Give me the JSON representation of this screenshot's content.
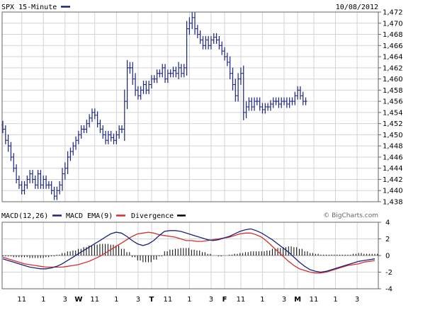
{
  "header": {
    "symbol_label": "SPX 15-Minute",
    "date_label": "10/08/2012"
  },
  "macd_header": {
    "macd_label": "MACD(12,26)",
    "ema_label": "MACD EMA(9)",
    "divergence_label": "Divergence"
  },
  "watermark": "© BigCharts.com",
  "colors": {
    "price": "#1a237e",
    "macd": "#1a237e",
    "ema": "#d32f2f",
    "divergence": "#000000",
    "grid": "#d3d3d3"
  },
  "chart_data": [
    {
      "type": "ohlc",
      "title": "SPX 15-Minute",
      "ylim": [
        1438,
        1472
      ],
      "yticks": [
        "1,438",
        "1,440",
        "1,442",
        "1,444",
        "1,446",
        "1,448",
        "1,450",
        "1,452",
        "1,454",
        "1,456",
        "1,458",
        "1,460",
        "1,462",
        "1,464",
        "1,466",
        "1,468",
        "1,470",
        "1,472"
      ],
      "xlim": [
        0,
        137
      ],
      "x_ticks": [
        {
          "i": 7,
          "label": "11",
          "bold": false
        },
        {
          "i": 15,
          "label": "1",
          "bold": false
        },
        {
          "i": 23,
          "label": "3",
          "bold": false
        },
        {
          "i": 28,
          "label": "W",
          "bold": true
        },
        {
          "i": 34,
          "label": "11",
          "bold": false
        },
        {
          "i": 42,
          "label": "1",
          "bold": false
        },
        {
          "i": 50,
          "label": "3",
          "bold": false
        },
        {
          "i": 55,
          "label": "T",
          "bold": true
        },
        {
          "i": 61,
          "label": "11",
          "bold": false
        },
        {
          "i": 69,
          "label": "1",
          "bold": false
        },
        {
          "i": 77,
          "label": "3",
          "bold": false
        },
        {
          "i": 82,
          "label": "F",
          "bold": true
        },
        {
          "i": 88,
          "label": "11",
          "bold": false
        },
        {
          "i": 96,
          "label": "1",
          "bold": false
        },
        {
          "i": 104,
          "label": "3",
          "bold": false
        },
        {
          "i": 109,
          "label": "M",
          "bold": true
        },
        {
          "i": 115,
          "label": "11",
          "bold": false
        },
        {
          "i": 123,
          "label": "1",
          "bold": false
        },
        {
          "i": 131,
          "label": "3",
          "bold": false
        }
      ],
      "close": [
        1451,
        1449,
        1448,
        1446,
        1444,
        1442,
        1441,
        1440,
        1441,
        1442,
        1443,
        1442,
        1441,
        1443,
        1441,
        1442,
        1441,
        1441,
        1440,
        1439,
        1440,
        1441,
        1443,
        1444,
        1446,
        1447,
        1448,
        1449,
        1450,
        1451,
        1451,
        1452,
        1453,
        1454,
        1453.5,
        1452,
        1451,
        1450,
        1449,
        1450,
        1449.5,
        1449,
        1450,
        1451,
        1451,
        1456,
        1462,
        1462,
        1460,
        1458,
        1457,
        1458,
        1459,
        1458,
        1459,
        1460,
        1460,
        1461,
        1461,
        1462,
        1460,
        1461,
        1461,
        1461.5,
        1461,
        1462,
        1461,
        1462,
        1469,
        1470,
        1471,
        1469,
        1468,
        1467,
        1466,
        1467,
        1466,
        1467,
        1467.5,
        1467,
        1466,
        1465,
        1464,
        1463,
        1461,
        1459,
        1457,
        1460,
        1461,
        1454,
        1455,
        1456,
        1455,
        1456,
        1456,
        1455,
        1454.5,
        1455,
        1455,
        1455.5,
        1456,
        1456,
        1455.5,
        1456,
        1456,
        1455.5,
        1456,
        1456,
        1457,
        1458,
        1457,
        1456,
        1456
      ],
      "spread": [
        2,
        2,
        3,
        2,
        2,
        2,
        2,
        2,
        2,
        2,
        2,
        2,
        2,
        2,
        2,
        2,
        2,
        2,
        2,
        2,
        2,
        2,
        3,
        3,
        3,
        2,
        2,
        2,
        2,
        2,
        2,
        2,
        2,
        2,
        2,
        2,
        2,
        2,
        2,
        2,
        2,
        2,
        2,
        2,
        2,
        6,
        4,
        3,
        3,
        3,
        2,
        2,
        2,
        2,
        2,
        2,
        2,
        2,
        2,
        2,
        2,
        2,
        2,
        2,
        2,
        3,
        2,
        2,
        4,
        3,
        3,
        3,
        2,
        2,
        2,
        2,
        2,
        2,
        2,
        2,
        2,
        2,
        2,
        2,
        3,
        3,
        3,
        3,
        3,
        4,
        3,
        2,
        2,
        2,
        2,
        2,
        2,
        2,
        2,
        2,
        2,
        2,
        2,
        2,
        2,
        2,
        2,
        2,
        2,
        2,
        2,
        2,
        2
      ]
    },
    {
      "type": "line",
      "title": "MACD(12,26)",
      "ylim": [
        -4,
        4
      ],
      "yticks": [
        "4",
        "2",
        "0",
        "-2",
        "-4"
      ],
      "series": [
        {
          "name": "MACD EMA(9)",
          "values": [
            -0.2,
            -0.4,
            -0.6,
            -0.8,
            -1.0,
            -1.1,
            -1.2,
            -1.3,
            -1.4,
            -1.4,
            -1.4,
            -1.4,
            -1.3,
            -1.2,
            -1.1,
            -0.9,
            -0.7,
            -0.4,
            -0.1,
            0.3,
            0.7,
            1.1,
            1.5,
            1.9,
            2.3,
            2.6,
            2.7,
            2.8,
            2.7,
            2.5,
            2.4,
            2.3,
            2.2,
            2.0,
            1.8,
            1.8,
            1.7,
            1.7,
            1.8,
            1.9,
            2.0,
            2.1,
            2.2,
            2.4,
            2.6,
            2.7,
            2.7,
            2.5,
            2.2,
            1.7,
            1.1,
            0.5,
            -0.1,
            -0.7,
            -1.2,
            -1.6,
            -1.8,
            -2.0,
            -2.1,
            -2.1,
            -2.0,
            -1.8,
            -1.6,
            -1.4,
            -1.2,
            -1.1,
            -1.0,
            -0.8,
            -0.7,
            -0.6
          ]
        },
        {
          "name": "MACD(12,26)",
          "values": [
            -0.4,
            -0.6,
            -0.8,
            -1.0,
            -1.2,
            -1.4,
            -1.5,
            -1.6,
            -1.6,
            -1.5,
            -1.3,
            -1.0,
            -0.6,
            -0.2,
            0.2,
            0.6,
            1.0,
            1.4,
            1.8,
            2.2,
            2.6,
            2.8,
            2.7,
            2.3,
            1.8,
            1.4,
            1.2,
            1.4,
            1.8,
            2.4,
            2.9,
            3.0,
            3.0,
            2.9,
            2.7,
            2.5,
            2.3,
            2.1,
            1.9,
            1.8,
            1.9,
            2.1,
            2.3,
            2.6,
            2.9,
            3.1,
            3.2,
            3.0,
            2.7,
            2.3,
            1.9,
            1.4,
            0.9,
            0.4,
            -0.2,
            -0.8,
            -1.3,
            -1.7,
            -1.9,
            -2.0,
            -1.9,
            -1.7,
            -1.5,
            -1.3,
            -1.1,
            -0.9,
            -0.7,
            -0.6,
            -0.5,
            -0.4
          ]
        },
        {
          "name": "Divergence",
          "values": [
            -0.1,
            -0.1,
            -0.2,
            -0.2,
            -0.2,
            -0.3,
            -0.3,
            -0.3,
            -0.2,
            -0.1,
            0.1,
            0.3,
            0.5,
            0.6,
            0.8,
            1.0,
            1.2,
            1.3,
            1.4,
            1.4,
            1.3,
            1.2,
            0.8,
            0.4,
            -0.2,
            -0.6,
            -0.8,
            -0.8,
            -0.5,
            -0.1,
            0.5,
            0.7,
            0.8,
            0.9,
            0.9,
            0.7,
            0.6,
            0.4,
            0.2,
            0.0,
            -0.1,
            0.0,
            0.1,
            0.2,
            0.3,
            0.4,
            0.5,
            0.5,
            0.5,
            0.6,
            0.8,
            0.9,
            1.0,
            1.1,
            1.0,
            0.8,
            0.5,
            0.3,
            0.2,
            0.1,
            0.1,
            0.1,
            0.1,
            0.1,
            0.1,
            0.2,
            0.3,
            0.2,
            0.2,
            0.2
          ]
        }
      ]
    }
  ]
}
